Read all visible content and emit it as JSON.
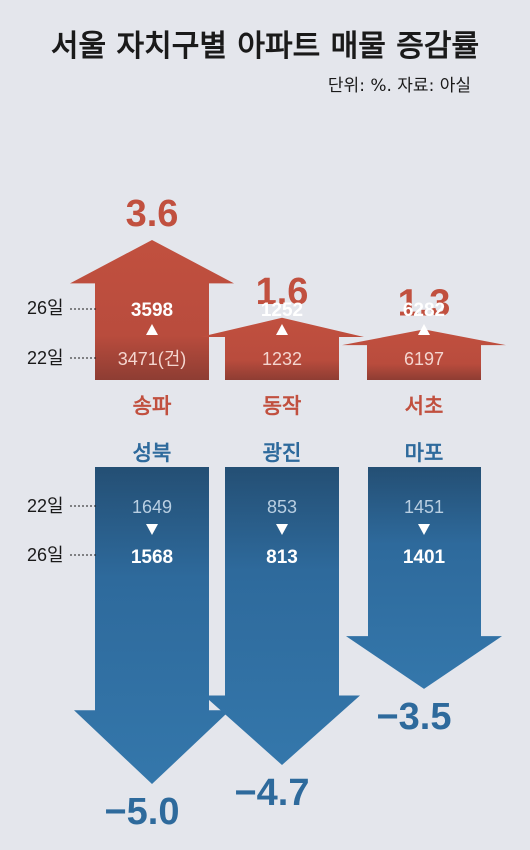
{
  "header": {
    "title": "서울 자치구별 아파트 매물 증감률",
    "source": "단위: %. 자료: 아실"
  },
  "colors": {
    "up": "#c1503f",
    "up_dark": "#8e3d33",
    "down": "#2e6a9c",
    "down_dark": "#244f74"
  },
  "labels": {
    "day26": "26일",
    "day22": "22일",
    "count_unit": "(건)"
  },
  "chart_data": {
    "type": "bar",
    "title": "서울 자치구별 아파트 매물 증감률",
    "unit": "%",
    "increase": [
      {
        "district": "송파",
        "change_pct": 3.6,
        "change_label": "3.6",
        "listings_22": 3471,
        "listings_22_label": "3471(건)",
        "listings_26": 3598
      },
      {
        "district": "동작",
        "change_pct": 1.6,
        "change_label": "1.6",
        "listings_22": 1232,
        "listings_22_label": "1232",
        "listings_26": 1252
      },
      {
        "district": "서초",
        "change_pct": 1.3,
        "change_label": "1.3",
        "listings_22": 6197,
        "listings_22_label": "6197",
        "listings_26": 6282
      }
    ],
    "decrease": [
      {
        "district": "성북",
        "change_pct": -5.0,
        "change_label": "−5.0",
        "listings_22": 1649,
        "listings_26": 1568
      },
      {
        "district": "광진",
        "change_pct": -4.7,
        "change_label": "−4.7",
        "listings_22": 853,
        "listings_26": 813
      },
      {
        "district": "마포",
        "change_pct": -3.5,
        "change_label": "−3.5",
        "listings_22": 1451,
        "listings_26": 1401
      }
    ]
  }
}
